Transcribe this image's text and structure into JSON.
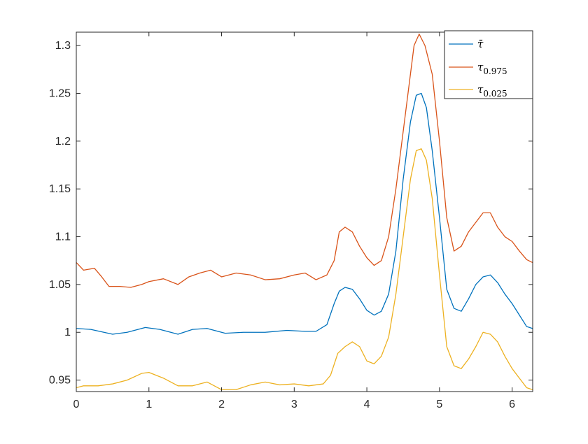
{
  "chart_data": {
    "type": "line",
    "title": "",
    "xlabel": "",
    "ylabel": "",
    "xlim": [
      0,
      6.2832
    ],
    "ylim": [
      0.938,
      1.314
    ],
    "xticks": [
      0,
      1,
      2,
      3,
      4,
      5,
      6
    ],
    "xtick_labels": [
      "0",
      "1",
      "2",
      "3",
      "4",
      "5",
      "6"
    ],
    "yticks": [
      0.95,
      1.0,
      1.05,
      1.1,
      1.15,
      1.2,
      1.25,
      1.3
    ],
    "ytick_labels": [
      "0.95",
      "1",
      "1.05",
      "1.1",
      "1.15",
      "1.2",
      "1.25",
      "1.3"
    ],
    "grid": false,
    "legend_position": "top-right",
    "series": [
      {
        "name": "τ̄",
        "color": "#0072BD",
        "x": [
          0,
          0.2,
          0.5,
          0.7,
          0.95,
          1.15,
          1.4,
          1.6,
          1.8,
          2.05,
          2.3,
          2.6,
          2.9,
          3.15,
          3.3,
          3.45,
          3.55,
          3.62,
          3.7,
          3.8,
          3.9,
          4.0,
          4.1,
          4.2,
          4.3,
          4.4,
          4.5,
          4.6,
          4.68,
          4.75,
          4.82,
          4.9,
          5.0,
          5.1,
          5.2,
          5.3,
          5.4,
          5.5,
          5.6,
          5.7,
          5.8,
          5.9,
          6.0,
          6.1,
          6.2,
          6.28
        ],
        "values": [
          1.004,
          1.003,
          0.998,
          1.0,
          1.005,
          1.003,
          0.998,
          1.003,
          1.004,
          0.999,
          1.0,
          1.0,
          1.002,
          1.001,
          1.001,
          1.008,
          1.03,
          1.043,
          1.047,
          1.045,
          1.035,
          1.023,
          1.018,
          1.022,
          1.04,
          1.085,
          1.16,
          1.22,
          1.248,
          1.25,
          1.235,
          1.19,
          1.12,
          1.045,
          1.025,
          1.022,
          1.035,
          1.05,
          1.058,
          1.06,
          1.052,
          1.04,
          1.03,
          1.018,
          1.006,
          1.004
        ]
      },
      {
        "name": "τ_{0.975}",
        "color": "#D95319",
        "x": [
          0,
          0.1,
          0.25,
          0.35,
          0.45,
          0.6,
          0.75,
          0.9,
          1.0,
          1.2,
          1.4,
          1.55,
          1.7,
          1.85,
          2.0,
          2.2,
          2.4,
          2.6,
          2.8,
          3.0,
          3.15,
          3.3,
          3.45,
          3.55,
          3.62,
          3.7,
          3.8,
          3.9,
          4.0,
          4.1,
          4.2,
          4.3,
          4.4,
          4.5,
          4.6,
          4.65,
          4.72,
          4.8,
          4.9,
          5.0,
          5.1,
          5.2,
          5.3,
          5.4,
          5.5,
          5.6,
          5.7,
          5.8,
          5.9,
          6.0,
          6.1,
          6.2,
          6.28
        ],
        "values": [
          1.073,
          1.065,
          1.067,
          1.058,
          1.048,
          1.048,
          1.047,
          1.05,
          1.053,
          1.056,
          1.05,
          1.058,
          1.062,
          1.065,
          1.058,
          1.062,
          1.06,
          1.055,
          1.056,
          1.06,
          1.062,
          1.055,
          1.06,
          1.075,
          1.105,
          1.11,
          1.105,
          1.09,
          1.078,
          1.07,
          1.075,
          1.1,
          1.15,
          1.21,
          1.27,
          1.3,
          1.312,
          1.3,
          1.27,
          1.2,
          1.12,
          1.085,
          1.09,
          1.105,
          1.115,
          1.125,
          1.125,
          1.11,
          1.1,
          1.095,
          1.085,
          1.076,
          1.073
        ]
      },
      {
        "name": "τ_{0.025}",
        "color": "#EDB120",
        "x": [
          0,
          0.1,
          0.3,
          0.5,
          0.7,
          0.9,
          1.0,
          1.2,
          1.4,
          1.6,
          1.8,
          2.0,
          2.2,
          2.4,
          2.6,
          2.8,
          3.0,
          3.2,
          3.4,
          3.5,
          3.6,
          3.7,
          3.8,
          3.9,
          4.0,
          4.1,
          4.2,
          4.3,
          4.4,
          4.5,
          4.6,
          4.68,
          4.75,
          4.82,
          4.9,
          5.0,
          5.1,
          5.2,
          5.3,
          5.4,
          5.5,
          5.6,
          5.7,
          5.8,
          5.9,
          6.0,
          6.1,
          6.2,
          6.28
        ],
        "values": [
          0.942,
          0.944,
          0.944,
          0.946,
          0.95,
          0.957,
          0.958,
          0.952,
          0.944,
          0.944,
          0.948,
          0.94,
          0.94,
          0.945,
          0.948,
          0.945,
          0.946,
          0.944,
          0.946,
          0.955,
          0.978,
          0.985,
          0.99,
          0.985,
          0.97,
          0.967,
          0.975,
          0.995,
          1.04,
          1.1,
          1.16,
          1.19,
          1.192,
          1.18,
          1.14,
          1.06,
          0.985,
          0.965,
          0.962,
          0.972,
          0.985,
          1.0,
          0.998,
          0.99,
          0.975,
          0.962,
          0.952,
          0.942,
          0.94
        ]
      }
    ]
  }
}
